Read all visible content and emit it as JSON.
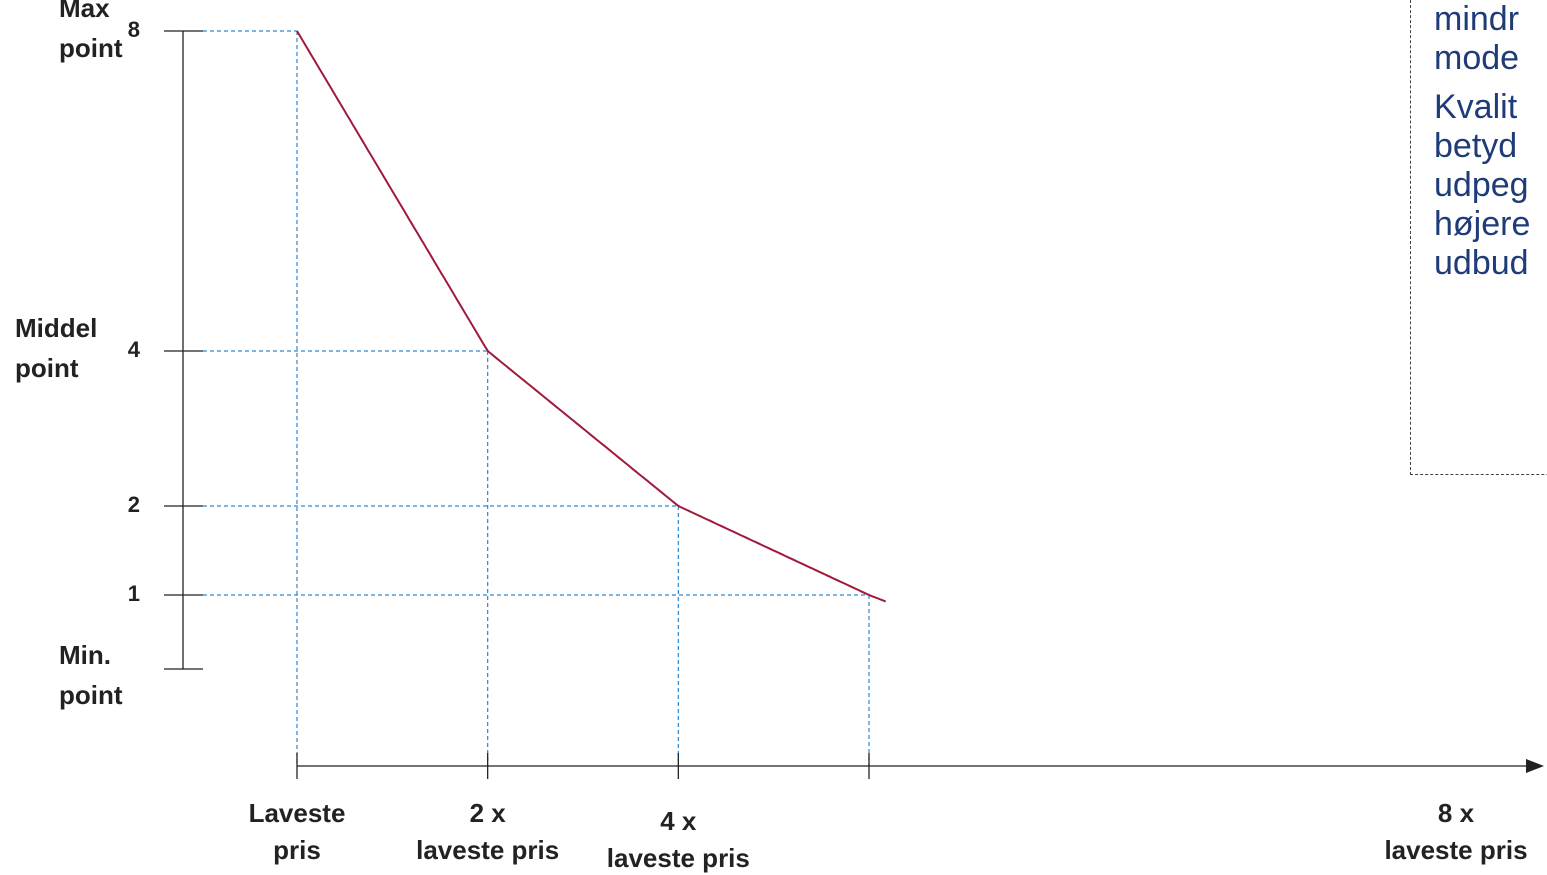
{
  "chart_data": {
    "type": "line",
    "series": [
      {
        "x": [
          1,
          1.25,
          1.5,
          2,
          3,
          4,
          6,
          8,
          8.5
        ],
        "values": [
          8,
          6.4,
          5.33,
          4,
          2.67,
          2,
          1.33,
          1,
          0.94
        ]
      }
    ],
    "y_ticks": [
      {
        "value": 8,
        "label": "8",
        "side_label": [
          "Max",
          "point"
        ]
      },
      {
        "value": 4,
        "label": "4",
        "side_label": [
          "Middel",
          "point"
        ]
      },
      {
        "value": 2,
        "label": "2"
      },
      {
        "value": 1,
        "label": "1"
      },
      {
        "value": 0.5,
        "label": "",
        "side_label": [
          "Min.",
          "point"
        ]
      }
    ],
    "x_ticks": [
      {
        "value": 1,
        "label": [
          "Laveste",
          "pris"
        ]
      },
      {
        "value": 2,
        "label": [
          "2 x",
          "laveste pris"
        ]
      },
      {
        "value": 4,
        "label": [
          "4 x",
          "laveste pris"
        ]
      },
      {
        "value": 8,
        "label": [
          "8 x",
          "laveste pris"
        ]
      }
    ],
    "guides": [
      {
        "x": 1,
        "y": 8
      },
      {
        "x": 2,
        "y": 4
      },
      {
        "x": 4,
        "y": 2
      },
      {
        "x": 8,
        "y": 1
      }
    ],
    "colors": {
      "curve": "#a01a3a",
      "guides": "#2f86d0",
      "axis": "#222222"
    }
  },
  "note": {
    "paragraphs": [
      [
        "mindr",
        "mode"
      ],
      [
        "Kvalit",
        "betyd",
        "udpeg",
        "højere",
        "udbud"
      ]
    ]
  }
}
